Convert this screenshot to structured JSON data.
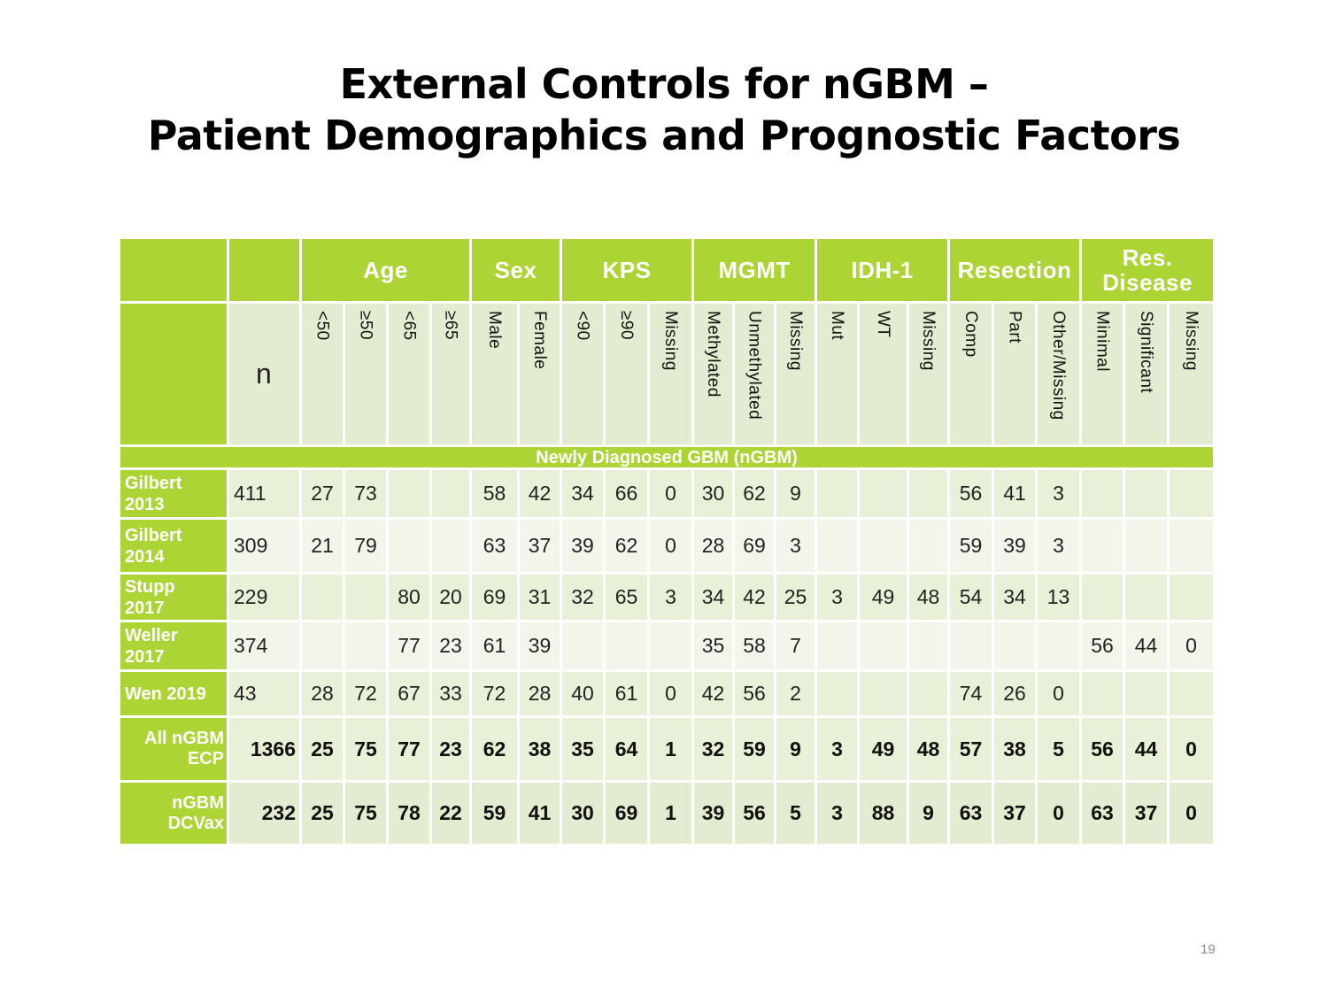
{
  "title": {
    "line1": "External Controls for nGBM –",
    "line2": "Patient Demographics and Prognostic Factors"
  },
  "table": {
    "groups": {
      "age": "Age",
      "sex": "Sex",
      "kps": "KPS",
      "mgmt": "MGMT",
      "idh1": "IDH-1",
      "resection": "Resection",
      "res_disease_1": "Res.",
      "res_disease_2": "Disease"
    },
    "n_label": "n",
    "subheaders": [
      "<50",
      "≥50",
      "<65",
      "≥65",
      "Male",
      "Female",
      "<90",
      "≥90",
      "Missing",
      "Methylated",
      "Unmethylated",
      "Missing",
      "Mut",
      "WT",
      "Missing",
      "Comp",
      "Part",
      "Other/Missing",
      "Minimal",
      "Significant",
      "Missing"
    ],
    "section_label": "Newly Diagnosed GBM (nGBM)",
    "rows": [
      {
        "label1": "Gilbert",
        "label2": "2013",
        "n": "411",
        "vals": [
          "27",
          "73",
          "",
          "",
          "58",
          "42",
          "34",
          "66",
          "0",
          "30",
          "62",
          "9",
          "",
          "",
          "",
          "56",
          "41",
          "3",
          "",
          "",
          ""
        ]
      },
      {
        "label1": "Gilbert",
        "label2": "2014",
        "n": "309",
        "vals": [
          "21",
          "79",
          "",
          "",
          "63",
          "37",
          "39",
          "62",
          "0",
          "28",
          "69",
          "3",
          "",
          "",
          "",
          "59",
          "39",
          "3",
          "",
          "",
          ""
        ]
      },
      {
        "label1": "Stupp",
        "label2": "2017",
        "n": "229",
        "vals": [
          "",
          "",
          "80",
          "20",
          "69",
          "31",
          "32",
          "65",
          "3",
          "34",
          "42",
          "25",
          "3",
          "49",
          "48",
          "54",
          "34",
          "13",
          "",
          "",
          ""
        ]
      },
      {
        "label1": "Weller",
        "label2": "2017",
        "n": "374",
        "vals": [
          "",
          "",
          "77",
          "23",
          "61",
          "39",
          "",
          "",
          "",
          "35",
          "58",
          "7",
          "",
          "",
          "",
          "",
          "",
          "",
          "56",
          "44",
          "0"
        ]
      },
      {
        "label1": "Wen 2019",
        "label2": "",
        "n": "43",
        "vals": [
          "28",
          "72",
          "67",
          "33",
          "72",
          "28",
          "40",
          "61",
          "0",
          "42",
          "56",
          "2",
          "",
          "",
          "",
          "74",
          "26",
          "0",
          "",
          "",
          ""
        ]
      }
    ],
    "summary": [
      {
        "label1": "All nGBM",
        "label2": "ECP",
        "n": "1366",
        "vals": [
          "25",
          "75",
          "77",
          "23",
          "62",
          "38",
          "35",
          "64",
          "1",
          "32",
          "59",
          "9",
          "3",
          "49",
          "48",
          "57",
          "38",
          "5",
          "56",
          "44",
          "0"
        ]
      },
      {
        "label1": "nGBM",
        "label2": "DCVax",
        "n": "232",
        "vals": [
          "25",
          "75",
          "78",
          "22",
          "59",
          "41",
          "30",
          "69",
          "1",
          "39",
          "56",
          "5",
          "3",
          "88",
          "9",
          "63",
          "37",
          "0",
          "63",
          "37",
          "0"
        ]
      }
    ]
  },
  "page_number": "19",
  "colors": {
    "accent_green": "#acd435",
    "row_light": "#e8f0d8"
  }
}
